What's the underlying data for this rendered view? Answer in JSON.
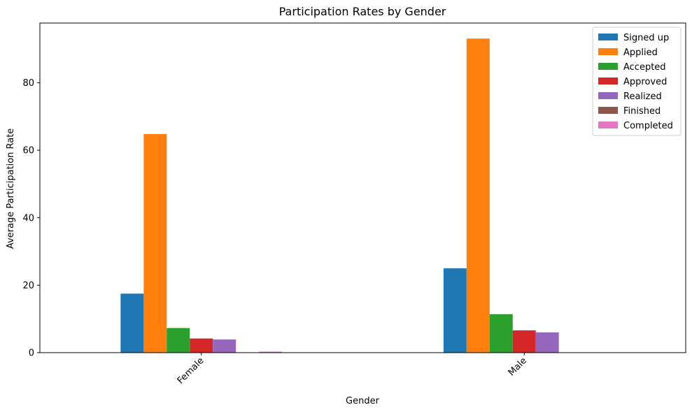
{
  "chart_data": {
    "type": "bar",
    "title": "Participation Rates by Gender",
    "xlabel": "Gender",
    "ylabel": "Average Participation Rate",
    "categories": [
      "Female",
      "Male"
    ],
    "ylim": [
      0,
      97.7
    ],
    "yticks": [
      0,
      20,
      40,
      60,
      80
    ],
    "grid": false,
    "legend_position": "top-right",
    "series": [
      {
        "name": "Signed up",
        "color": "#1f77b4",
        "values": [
          17.5,
          25.0
        ]
      },
      {
        "name": "Applied",
        "color": "#ff7f0e",
        "values": [
          64.8,
          93.1
        ]
      },
      {
        "name": "Accepted",
        "color": "#2ca02c",
        "values": [
          7.3,
          11.4
        ]
      },
      {
        "name": "Approved",
        "color": "#d62728",
        "values": [
          4.2,
          6.6
        ]
      },
      {
        "name": "Realized",
        "color": "#9467bd",
        "values": [
          3.9,
          6.0
        ]
      },
      {
        "name": "Finished",
        "color": "#8c564b",
        "values": [
          0.0,
          0.0
        ]
      },
      {
        "name": "Completed",
        "color": "#e377c2",
        "values": [
          0.3,
          0.0
        ]
      }
    ]
  }
}
